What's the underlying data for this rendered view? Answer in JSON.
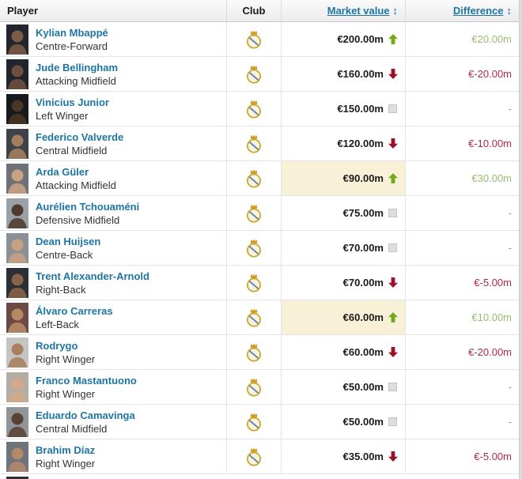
{
  "colors": {
    "link_blue": "#1d75a3",
    "positive_arrow_green": "#74a81b",
    "positive_text_green": "#9cba70",
    "negative_arrow_red": "#9c1127",
    "negative_text_red": "#b02849",
    "no_change_grey": "#dedede",
    "highlight_cream": "#f8f1d8"
  },
  "table": {
    "columns": [
      {
        "label": "Player",
        "sortable": false
      },
      {
        "label": "Club",
        "sortable": false
      },
      {
        "label": "Market value",
        "sortable": true,
        "sort_glyph": "↕"
      },
      {
        "label": "Difference",
        "sortable": true,
        "sort_glyph": "↕"
      }
    ],
    "rows": [
      {
        "name": "Kylian Mbappé",
        "position": "Centre-Forward",
        "club": "Real Madrid",
        "market_value": "€200.00m",
        "trend": "up",
        "difference": "€20.00m",
        "highlight": false,
        "photo": {
          "bg": "#23252d",
          "skin": "#7d5b45"
        }
      },
      {
        "name": "Jude Bellingham",
        "position": "Attacking Midfield",
        "club": "Real Madrid",
        "market_value": "€160.00m",
        "trend": "down",
        "difference": "€-20.00m",
        "highlight": false,
        "photo": {
          "bg": "#20242c",
          "skin": "#6e4f3c"
        }
      },
      {
        "name": "Vinicius Junior",
        "position": "Left Winger",
        "club": "Real Madrid",
        "market_value": "€150.00m",
        "trend": "flat",
        "difference": "-",
        "highlight": false,
        "photo": {
          "bg": "#17191d",
          "skin": "#4a3526"
        }
      },
      {
        "name": "Federico Valverde",
        "position": "Central Midfield",
        "club": "Real Madrid",
        "market_value": "€120.00m",
        "trend": "down",
        "difference": "€-10.00m",
        "highlight": false,
        "photo": {
          "bg": "#3d4348",
          "skin": "#a57e5f"
        }
      },
      {
        "name": "Arda Güler",
        "position": "Attacking Midfield",
        "club": "Real Madrid",
        "market_value": "€90.00m",
        "trend": "up",
        "difference": "€30.00m",
        "highlight": true,
        "photo": {
          "bg": "#6e7276",
          "skin": "#c9a183"
        }
      },
      {
        "name": "Aurélien Tchouaméni",
        "position": "Defensive Midfield",
        "club": "Real Madrid",
        "market_value": "€75.00m",
        "trend": "flat",
        "difference": "-",
        "highlight": false,
        "photo": {
          "bg": "#9aa2a8",
          "skin": "#4f3a2c"
        }
      },
      {
        "name": "Dean Huijsen",
        "position": "Centre-Back",
        "club": "Real Madrid",
        "market_value": "€70.00m",
        "trend": "flat",
        "difference": "-",
        "highlight": false,
        "photo": {
          "bg": "#8a9096",
          "skin": "#c8a084"
        }
      },
      {
        "name": "Trent Alexander-Arnold",
        "position": "Right-Back",
        "club": "Real Madrid",
        "market_value": "€70.00m",
        "trend": "down",
        "difference": "€-5.00m",
        "highlight": false,
        "photo": {
          "bg": "#2b2f36",
          "skin": "#8a6247"
        }
      },
      {
        "name": "Álvaro Carreras",
        "position": "Left-Back",
        "club": "Real Madrid",
        "market_value": "€60.00m",
        "trend": "up",
        "difference": "€10.00m",
        "highlight": true,
        "photo": {
          "bg": "#6b4a44",
          "skin": "#b78a66"
        }
      },
      {
        "name": "Rodrygo",
        "position": "Right Winger",
        "club": "Real Madrid",
        "market_value": "€60.00m",
        "trend": "down",
        "difference": "€-20.00m",
        "highlight": false,
        "photo": {
          "bg": "#c4c4c2",
          "skin": "#a97f5f"
        }
      },
      {
        "name": "Franco Mastantuono",
        "position": "Right Winger",
        "club": "Real Madrid",
        "market_value": "€50.00m",
        "trend": "flat",
        "difference": "-",
        "highlight": false,
        "photo": {
          "bg": "#b3ada3",
          "skin": "#d3a988"
        }
      },
      {
        "name": "Eduardo Camavinga",
        "position": "Central Midfield",
        "club": "Real Madrid",
        "market_value": "€50.00m",
        "trend": "flat",
        "difference": "-",
        "highlight": false,
        "photo": {
          "bg": "#8f9598",
          "skin": "#5a4233"
        }
      },
      {
        "name": "Brahim Díaz",
        "position": "Right Winger",
        "club": "Real Madrid",
        "market_value": "€35.00m",
        "trend": "down",
        "difference": "€-5.00m",
        "highlight": false,
        "photo": {
          "bg": "#6e747c",
          "skin": "#b4886a"
        }
      }
    ],
    "partial_row": {
      "photo": {
        "bg": "#2e2e32"
      }
    }
  }
}
